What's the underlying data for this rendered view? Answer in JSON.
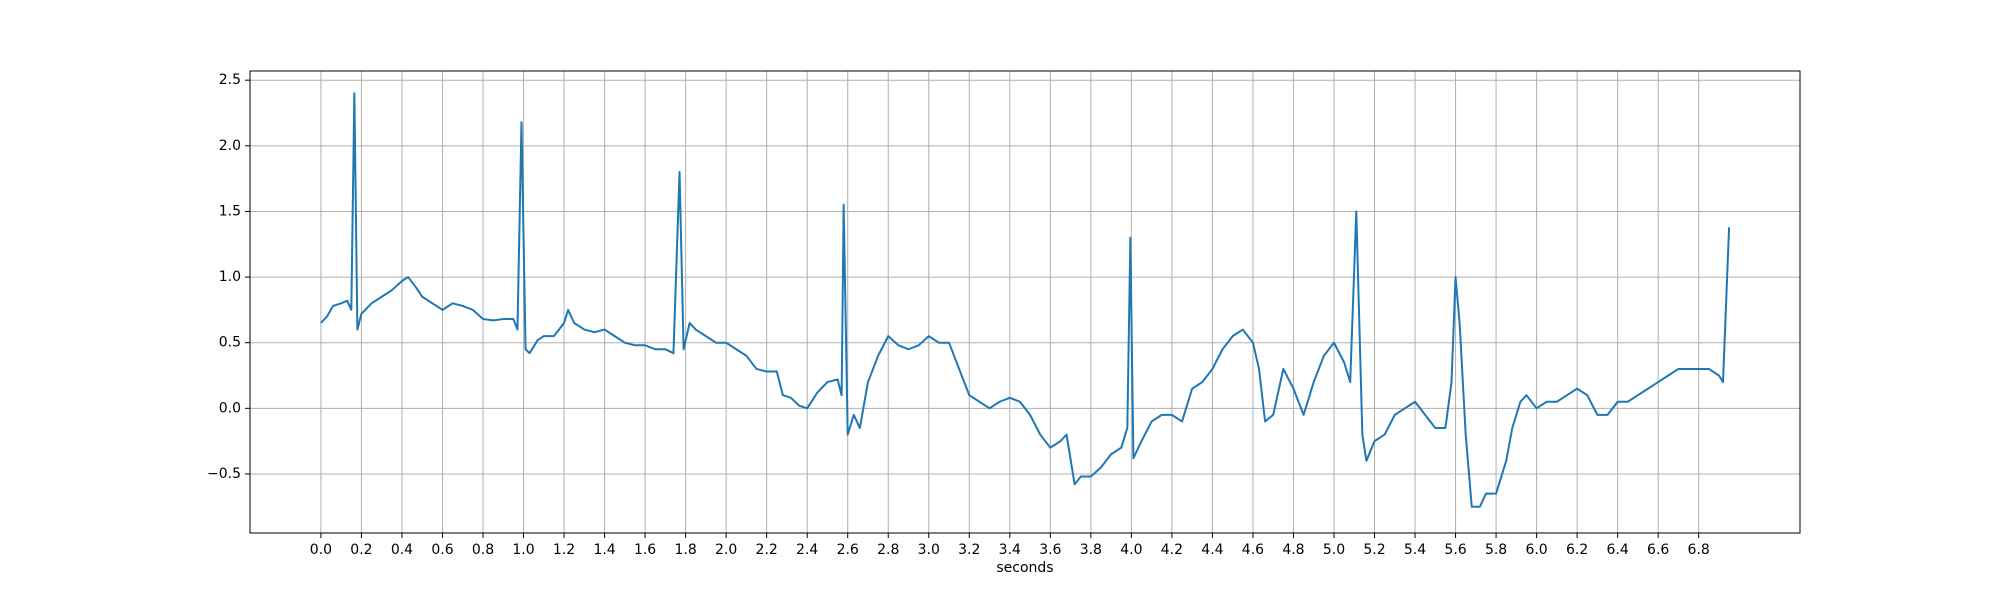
{
  "chart_data": {
    "type": "line",
    "xlabel": "seconds",
    "x": [
      0.0,
      0.03,
      0.06,
      0.1,
      0.13,
      0.15,
      0.165,
      0.18,
      0.2,
      0.25,
      0.3,
      0.35,
      0.4,
      0.43,
      0.47,
      0.5,
      0.55,
      0.6,
      0.65,
      0.7,
      0.75,
      0.8,
      0.85,
      0.9,
      0.95,
      0.97,
      0.99,
      1.01,
      1.03,
      1.07,
      1.1,
      1.15,
      1.2,
      1.22,
      1.25,
      1.3,
      1.35,
      1.4,
      1.45,
      1.5,
      1.55,
      1.6,
      1.65,
      1.7,
      1.74,
      1.77,
      1.79,
      1.82,
      1.85,
      1.9,
      1.95,
      2.0,
      2.05,
      2.1,
      2.15,
      2.2,
      2.25,
      2.28,
      2.32,
      2.36,
      2.4,
      2.45,
      2.5,
      2.55,
      2.57,
      2.58,
      2.6,
      2.63,
      2.66,
      2.7,
      2.75,
      2.8,
      2.85,
      2.9,
      2.95,
      3.0,
      3.05,
      3.1,
      3.15,
      3.2,
      3.25,
      3.3,
      3.35,
      3.4,
      3.45,
      3.5,
      3.55,
      3.6,
      3.65,
      3.68,
      3.72,
      3.75,
      3.8,
      3.85,
      3.9,
      3.95,
      3.98,
      3.995,
      4.01,
      4.05,
      4.1,
      4.15,
      4.2,
      4.25,
      4.3,
      4.35,
      4.4,
      4.45,
      4.5,
      4.55,
      4.6,
      4.63,
      4.66,
      4.7,
      4.75,
      4.8,
      4.85,
      4.9,
      4.95,
      5.0,
      5.05,
      5.08,
      5.11,
      5.14,
      5.16,
      5.2,
      5.25,
      5.3,
      5.35,
      5.4,
      5.45,
      5.5,
      5.55,
      5.58,
      5.6,
      5.62,
      5.65,
      5.68,
      5.72,
      5.75,
      5.8,
      5.83,
      5.85,
      5.88,
      5.92,
      5.95,
      6.0,
      6.05,
      6.1,
      6.15,
      6.2,
      6.25,
      6.3,
      6.35,
      6.4,
      6.45,
      6.5,
      6.55,
      6.6,
      6.65,
      6.7,
      6.75,
      6.8,
      6.85,
      6.9,
      6.92,
      6.95
    ],
    "values": [
      0.65,
      0.7,
      0.78,
      0.8,
      0.82,
      0.75,
      2.4,
      0.6,
      0.72,
      0.8,
      0.85,
      0.9,
      0.97,
      1.0,
      0.92,
      0.85,
      0.8,
      0.75,
      0.8,
      0.78,
      0.75,
      0.68,
      0.67,
      0.68,
      0.68,
      0.6,
      2.18,
      0.45,
      0.42,
      0.52,
      0.55,
      0.55,
      0.65,
      0.75,
      0.65,
      0.6,
      0.58,
      0.6,
      0.55,
      0.5,
      0.48,
      0.48,
      0.45,
      0.45,
      0.42,
      1.8,
      0.45,
      0.65,
      0.6,
      0.55,
      0.5,
      0.5,
      0.45,
      0.4,
      0.3,
      0.28,
      0.28,
      0.1,
      0.08,
      0.02,
      0.0,
      0.12,
      0.2,
      0.22,
      0.1,
      1.55,
      -0.2,
      -0.05,
      -0.15,
      0.2,
      0.4,
      0.55,
      0.48,
      0.45,
      0.48,
      0.55,
      0.5,
      0.5,
      0.3,
      0.1,
      0.05,
      0.0,
      0.05,
      0.08,
      0.05,
      -0.05,
      -0.2,
      -0.3,
      -0.25,
      -0.2,
      -0.58,
      -0.52,
      -0.52,
      -0.45,
      -0.35,
      -0.3,
      -0.15,
      1.3,
      -0.38,
      -0.25,
      -0.1,
      -0.05,
      -0.05,
      -0.1,
      0.15,
      0.2,
      0.3,
      0.45,
      0.55,
      0.6,
      0.5,
      0.3,
      -0.1,
      -0.05,
      0.3,
      0.15,
      -0.05,
      0.2,
      0.4,
      0.5,
      0.35,
      0.2,
      1.5,
      -0.2,
      -0.4,
      -0.25,
      -0.2,
      -0.05,
      0.0,
      0.05,
      -0.05,
      -0.15,
      -0.15,
      0.2,
      1.0,
      0.65,
      -0.2,
      -0.75,
      -0.75,
      -0.65,
      -0.65,
      -0.5,
      -0.4,
      -0.15,
      0.05,
      0.1,
      0.0,
      0.05,
      0.05,
      0.1,
      0.15,
      0.1,
      -0.05,
      -0.05,
      0.05,
      0.05,
      0.1,
      0.15,
      0.2,
      0.25,
      0.3,
      0.3,
      0.3,
      0.3,
      0.25,
      0.2,
      1.38
    ],
    "color": "#1f77b4",
    "xlim": [
      -0.35,
      7.3
    ],
    "ylim": [
      -0.95,
      2.57
    ],
    "xticks": [
      {
        "value": 0,
        "label": "0.0"
      },
      0.2,
      0.4,
      0.6,
      0.8,
      {
        "value": 1,
        "label": "1.0"
      },
      1.2,
      1.4,
      1.6,
      1.8,
      {
        "value": 2,
        "label": "2.0"
      },
      2.2,
      2.4,
      2.6,
      2.8,
      {
        "value": 3,
        "label": "3.0"
      },
      3.2,
      3.4,
      3.6,
      3.8,
      {
        "value": 4,
        "label": "4.0"
      },
      4.2,
      4.4,
      4.6,
      4.8,
      {
        "value": 5,
        "label": "5.0"
      },
      5.2,
      5.4,
      5.6,
      5.8,
      {
        "value": 6,
        "label": "6.0"
      },
      6.2,
      6.4,
      6.6,
      6.8
    ],
    "yticks": [
      {
        "value": -0.5,
        "label": "−0.5"
      },
      {
        "value": 0,
        "label": "0.0"
      },
      0.5,
      {
        "value": 1,
        "label": "1.0"
      },
      1.5,
      {
        "value": 2,
        "label": "2.0"
      },
      2.5
    ],
    "grid": true
  }
}
